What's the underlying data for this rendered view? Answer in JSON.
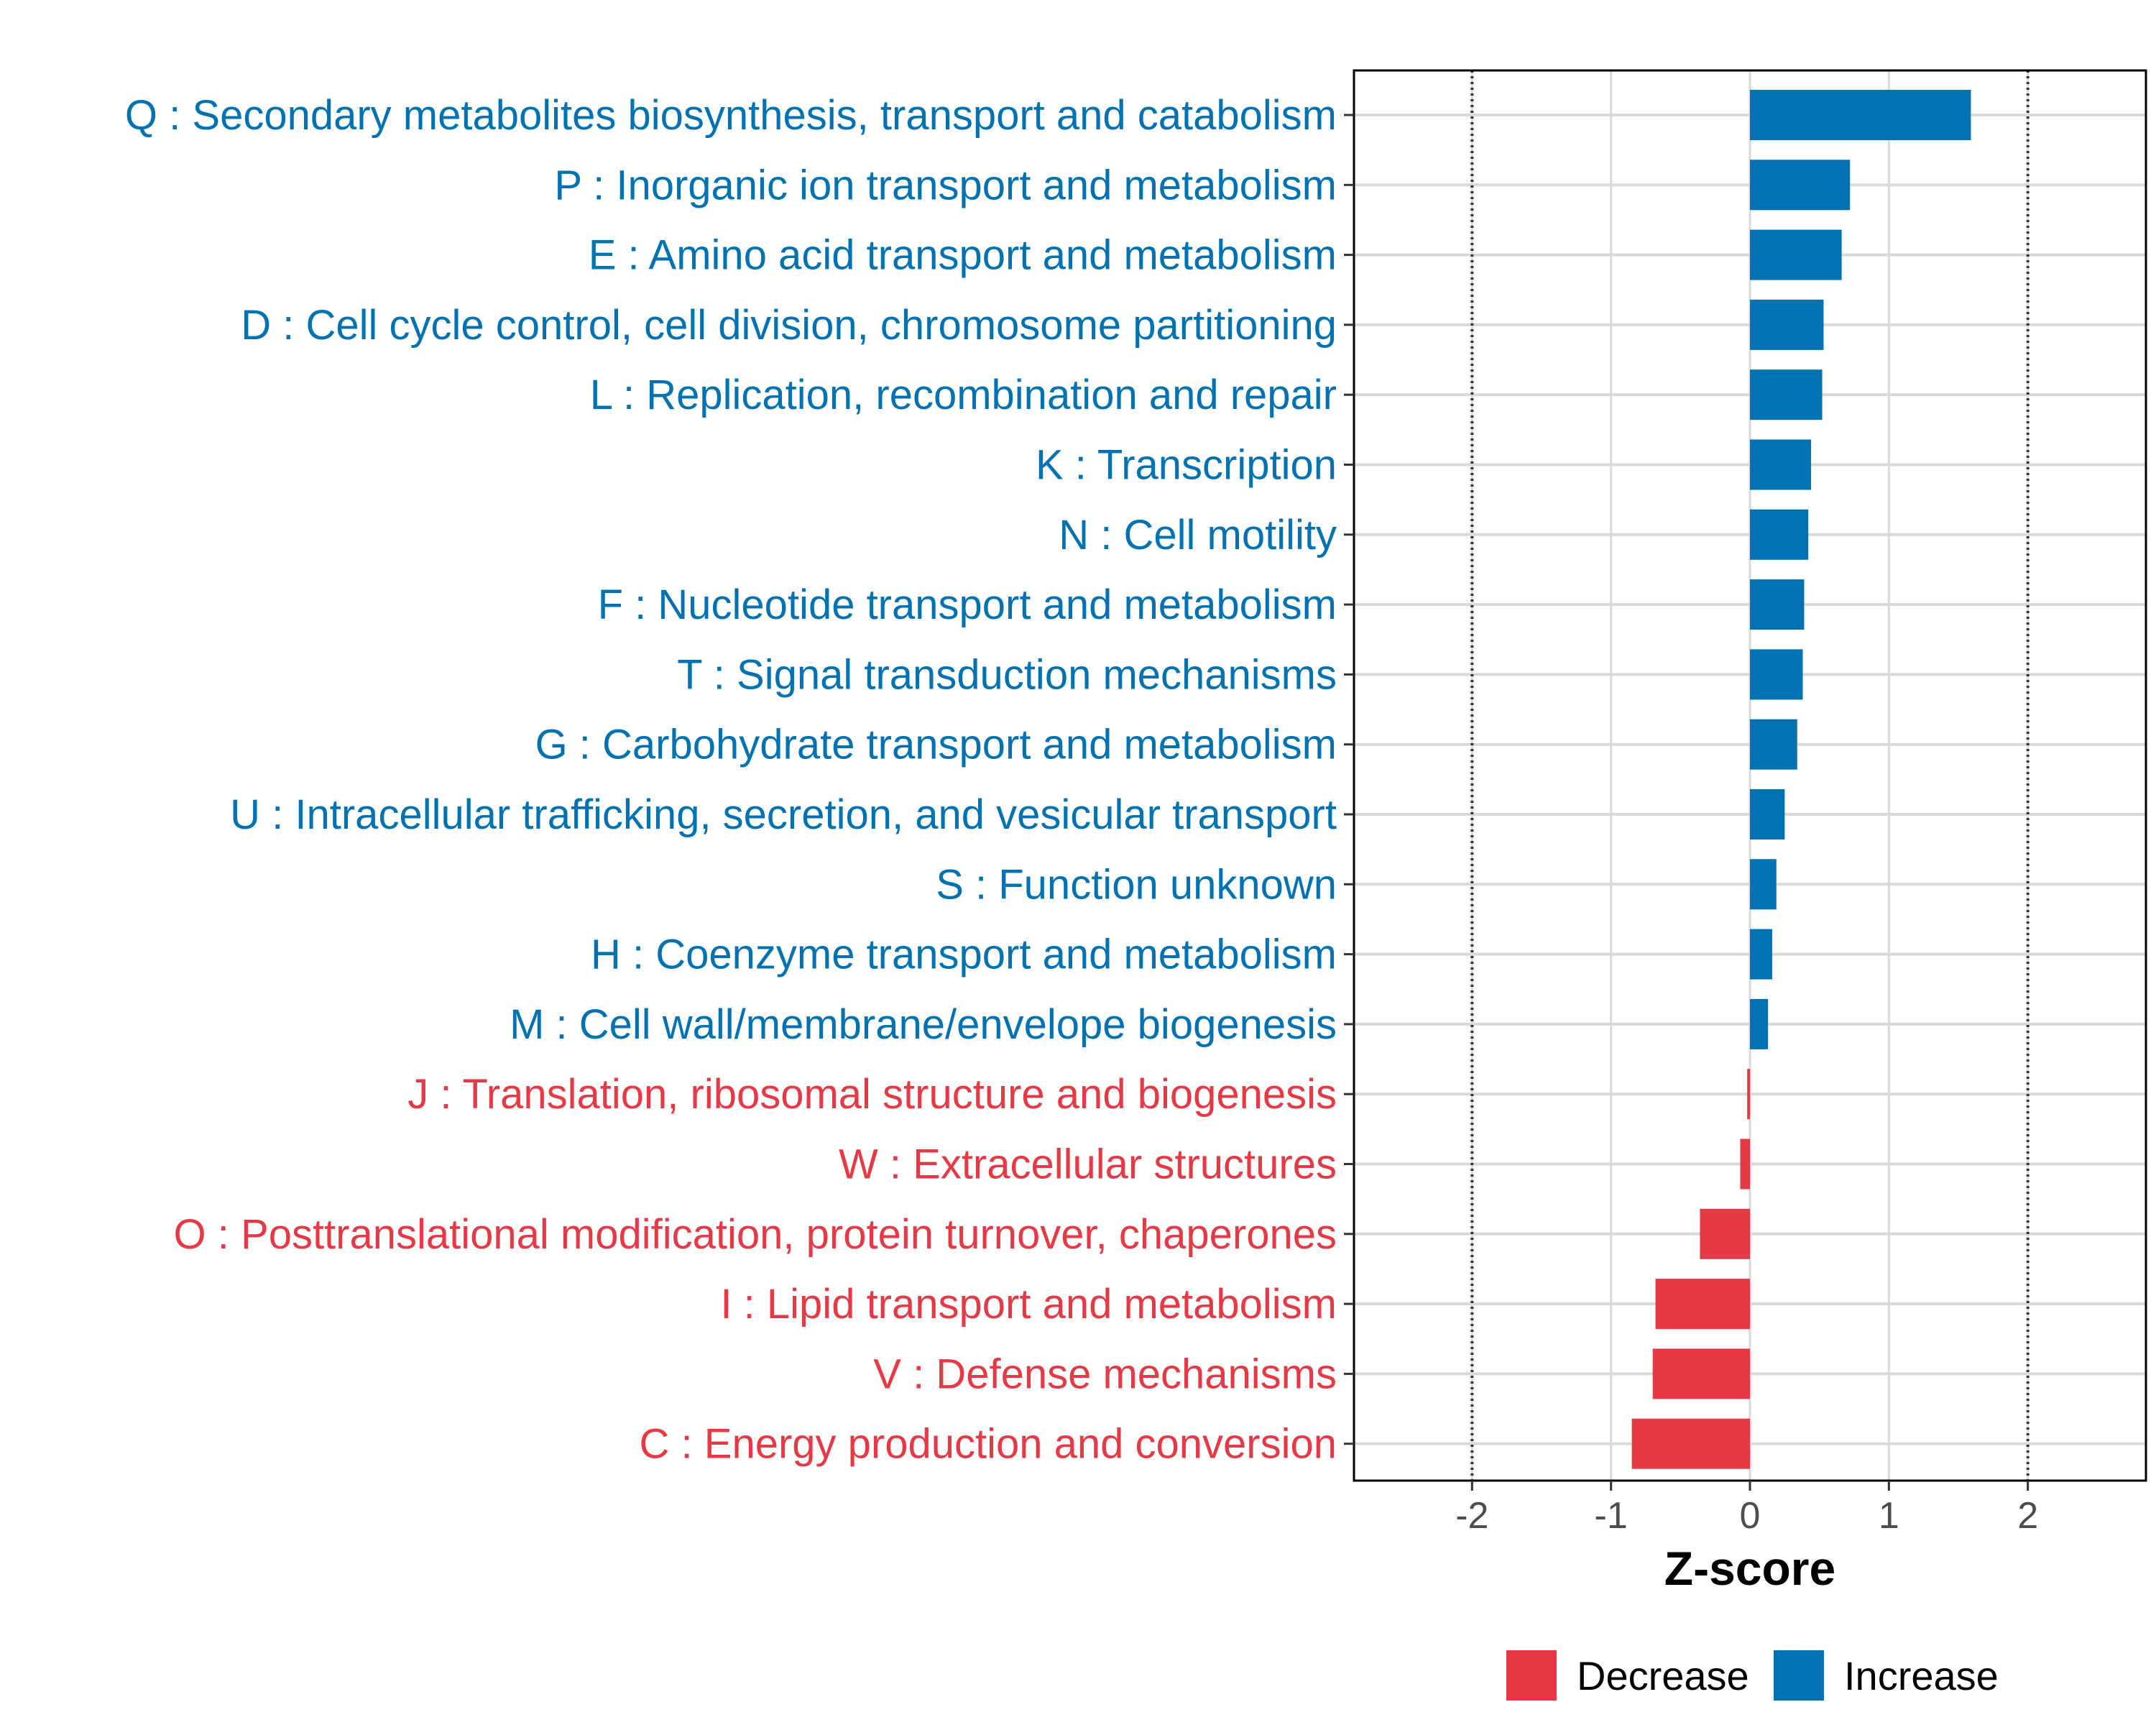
{
  "colors": {
    "increase": "#0072B2",
    "decrease": "#E63946",
    "grid": "#d9d9d9",
    "axis": "#000000"
  },
  "chart_data": {
    "type": "bar",
    "orientation": "horizontal",
    "title": "",
    "xlabel": "Z-score",
    "ylabel": "",
    "xlim": [
      -2.85,
      2.85
    ],
    "xticks": [
      "-2",
      "-1",
      "0",
      "1",
      "2"
    ],
    "reference_lines": [
      -2,
      2
    ],
    "categories": [
      "Q : Secondary metabolites biosynthesis, transport and catabolism",
      "P : Inorganic ion transport and metabolism",
      "E : Amino acid transport and metabolism",
      "D : Cell cycle control, cell division, chromosome partitioning",
      "L : Replication, recombination and repair",
      "K : Transcription",
      "N : Cell motility",
      "F : Nucleotide transport and metabolism",
      "T : Signal transduction mechanisms",
      "G : Carbohydrate transport and metabolism",
      "U : Intracellular trafficking, secretion, and vesicular transport",
      "S : Function unknown",
      "H : Coenzyme transport and metabolism",
      "M : Cell wall/membrane/envelope biogenesis",
      "J : Translation, ribosomal structure and biogenesis",
      "W : Extracellular structures",
      "O : Posttranslational modification, protein turnover, chaperones",
      "I : Lipid transport and metabolism",
      "V : Defense mechanisms",
      "C : Energy production and conversion"
    ],
    "values": [
      1.59,
      0.72,
      0.66,
      0.53,
      0.52,
      0.44,
      0.42,
      0.39,
      0.38,
      0.34,
      0.25,
      0.19,
      0.16,
      0.13,
      -0.02,
      -0.07,
      -0.36,
      -0.68,
      -0.7,
      -0.85
    ],
    "groups": [
      "Increase",
      "Increase",
      "Increase",
      "Increase",
      "Increase",
      "Increase",
      "Increase",
      "Increase",
      "Increase",
      "Increase",
      "Increase",
      "Increase",
      "Increase",
      "Increase",
      "Decrease",
      "Decrease",
      "Decrease",
      "Decrease",
      "Decrease",
      "Decrease"
    ],
    "legend": {
      "position": "bottom",
      "entries": [
        {
          "label": "Decrease",
          "color": "#E63946"
        },
        {
          "label": "Increase",
          "color": "#0072B2"
        }
      ]
    }
  }
}
